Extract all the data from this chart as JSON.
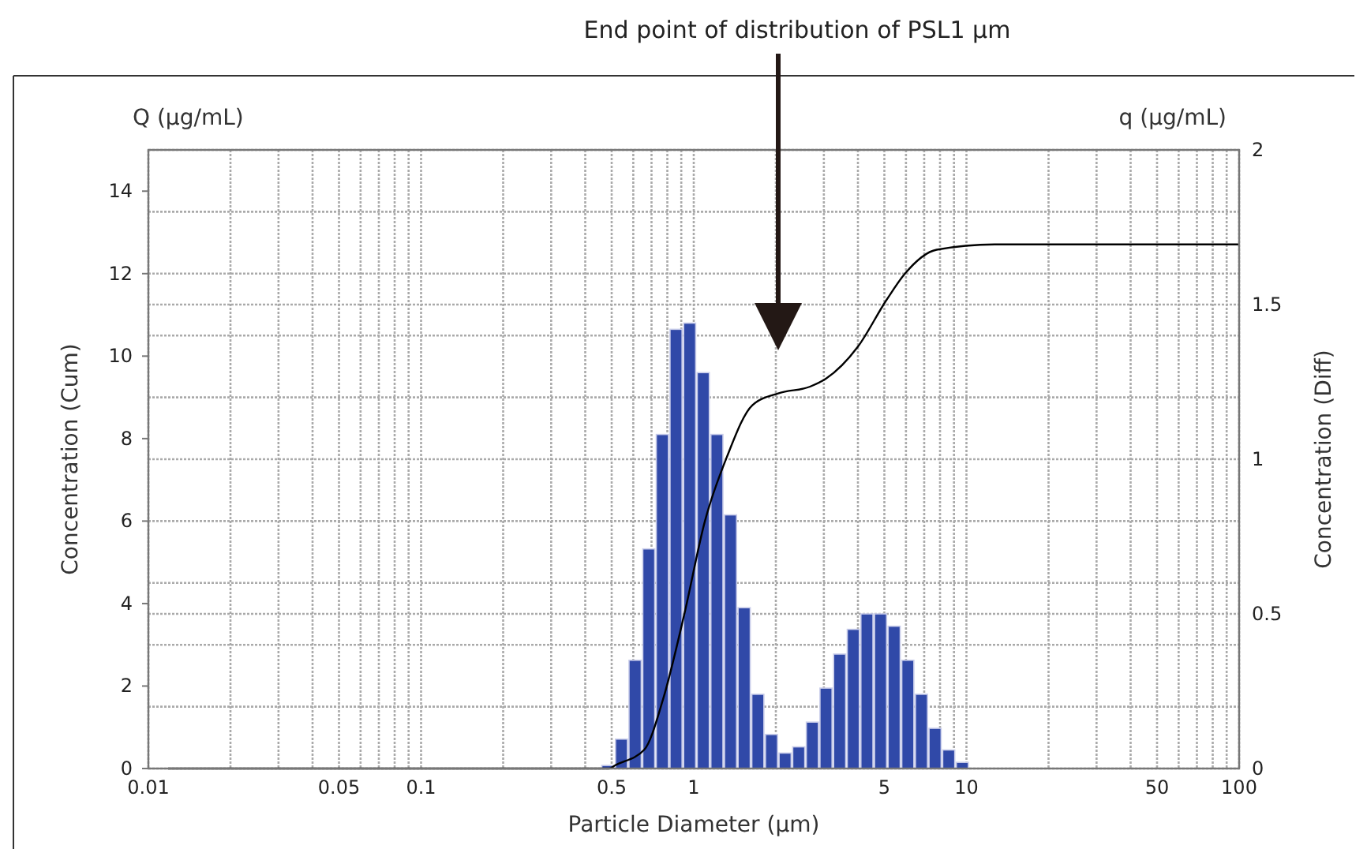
{
  "chart_data": {
    "type": "histogram",
    "xlabel": "Particle Diameter (µm)",
    "ylabel": "Concentration (Cum)",
    "y2label": "Concentration (Diff)",
    "log": "x",
    "grid": true,
    "annotations": [
      "End point of distribution of PSL1 µm",
      "Q (µg/mL)",
      "q (µg/mL)"
    ],
    "xlim": [
      0.01,
      100
    ],
    "xticks": [
      0.01,
      {
        "value": 0.02,
        "label": null
      },
      {
        "value": 0.03,
        "label": null
      },
      {
        "value": 0.04,
        "label": null
      },
      0.05,
      {
        "value": 0.06,
        "label": null
      },
      {
        "value": 0.07,
        "label": null
      },
      {
        "value": 0.08,
        "label": null
      },
      {
        "value": 0.09,
        "label": null
      },
      0.1,
      {
        "value": 0.2,
        "label": null
      },
      {
        "value": 0.3,
        "label": null
      },
      {
        "value": 0.4,
        "label": null
      },
      0.5,
      {
        "value": 0.6,
        "label": null
      },
      {
        "value": 0.7,
        "label": null
      },
      {
        "value": 0.8,
        "label": null
      },
      {
        "value": 0.9,
        "label": null
      },
      1,
      {
        "value": 2,
        "label": null
      },
      {
        "value": 3,
        "label": null
      },
      {
        "value": 4,
        "label": null
      },
      5,
      {
        "value": 6,
        "label": null
      },
      {
        "value": 7,
        "label": null
      },
      {
        "value": 8,
        "label": null
      },
      {
        "value": 9,
        "label": null
      },
      10,
      {
        "value": 20,
        "label": null
      },
      {
        "value": 30,
        "label": null
      },
      {
        "value": 40,
        "label": null
      },
      50,
      {
        "value": 60,
        "label": null
      },
      {
        "value": 70,
        "label": null
      },
      {
        "value": 80,
        "label": null
      },
      {
        "value": 90,
        "label": null
      },
      100
    ],
    "ylim": [
      0,
      15
    ],
    "yticks": [
      0,
      2,
      4,
      6,
      8,
      10,
      12,
      14
    ],
    "y2lim": [
      0,
      2
    ],
    "y2ticks": [
      0,
      {
        "value": 0.2,
        "label": null
      },
      {
        "value": 0.4,
        "label": null
      },
      0.5,
      {
        "value": 0.6,
        "label": null
      },
      {
        "value": 0.8,
        "label": null
      },
      1,
      {
        "value": 1.2,
        "label": null
      },
      {
        "value": 1.4,
        "label": null
      },
      1.5,
      {
        "value": 1.6,
        "label": null
      },
      {
        "value": 1.8,
        "label": null
      },
      2
    ],
    "series": [
      {
        "axis": "y2",
        "color": "#3049a8",
        "bins": [
          0.457,
          0.513,
          0.575,
          0.646,
          0.724,
          0.813,
          0.912,
          1.023,
          1.148,
          1.288,
          1.445,
          1.622,
          1.82,
          2.042,
          2.291,
          2.57,
          2.884,
          3.236,
          3.631,
          4.074,
          4.571,
          5.129,
          5.754,
          6.457,
          7.244,
          8.128,
          9.12,
          10.23
        ],
        "values": [
          0.01,
          0.095,
          0.35,
          0.71,
          1.08,
          1.42,
          1.44,
          1.28,
          1.08,
          0.82,
          0.52,
          0.24,
          0.11,
          0.05,
          0.07,
          0.15,
          0.26,
          0.37,
          0.45,
          0.5,
          0.5,
          0.46,
          0.35,
          0.24,
          0.13,
          0.06,
          0.02
        ]
      },
      {
        "type": "line",
        "color": "#000000",
        "x": [
          0.0118,
          0.49,
          0.516,
          0.659,
          0.771,
          0.921,
          1.1,
          1.32,
          1.64,
          2.05,
          2.67,
          3.05,
          3.99,
          5.1,
          5.95,
          7.77,
          12.7,
          100
        ],
        "values": [
          0,
          0,
          0.08,
          0.46,
          1.67,
          3.71,
          6.01,
          7.54,
          8.81,
          9.1,
          9.26,
          9.45,
          10.22,
          11.37,
          12.0,
          12.58,
          12.71,
          12.71
        ]
      }
    ]
  }
}
